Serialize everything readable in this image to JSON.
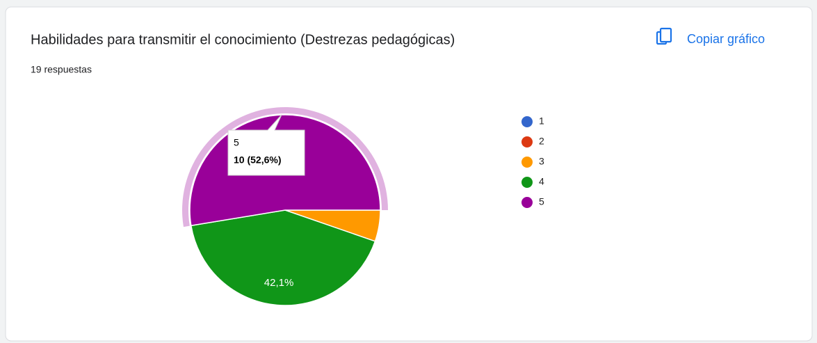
{
  "toolbar": {
    "copy_button": "Copiar gráfico"
  },
  "chart_data": {
    "type": "pie",
    "title": "Habilidades para transmitir el conocimiento (Destrezas pedagógicas)",
    "subtitle": "19 respuestas",
    "categories": [
      "1",
      "2",
      "3",
      "4",
      "5"
    ],
    "values": [
      0,
      0,
      5.3,
      42.1,
      52.6
    ],
    "value_labels": [
      null,
      null,
      null,
      "42,1%",
      null
    ],
    "colors": [
      "#3366cc",
      "#dc3912",
      "#ff9900",
      "#109618",
      "#990099"
    ],
    "legend": "right",
    "tooltip": {
      "category": "5",
      "text": "10 (52,6%)"
    }
  }
}
